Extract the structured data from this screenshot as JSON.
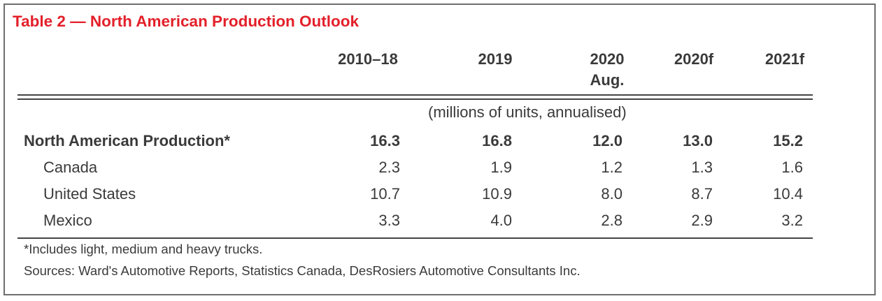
{
  "title": "Table 2 — North American Production Outlook",
  "columns": [
    {
      "line1": "2010–18",
      "line2": ""
    },
    {
      "line1": "2019",
      "line2": ""
    },
    {
      "line1": "2020",
      "line2": "Aug."
    },
    {
      "line1": "2020f",
      "line2": ""
    },
    {
      "line1": "2021f",
      "line2": ""
    }
  ],
  "units_note": "(millions of units, annualised)",
  "rows": [
    {
      "label": "North American Production*",
      "values": [
        "16.3",
        "16.8",
        "12.0",
        "13.0",
        "15.2"
      ]
    },
    {
      "label": "Canada",
      "values": [
        "2.3",
        "1.9",
        "1.2",
        "1.3",
        "1.6"
      ]
    },
    {
      "label": "United States",
      "values": [
        "10.7",
        "10.9",
        "8.0",
        "8.7",
        "10.4"
      ]
    },
    {
      "label": "Mexico",
      "values": [
        "3.3",
        "4.0",
        "2.8",
        "2.9",
        "3.2"
      ]
    }
  ],
  "footnote": "*Includes light, medium and heavy trucks.",
  "sources": "Sources: Ward's Automotive Reports, Statistics Canada, DesRosiers Automotive Consultants Inc."
}
